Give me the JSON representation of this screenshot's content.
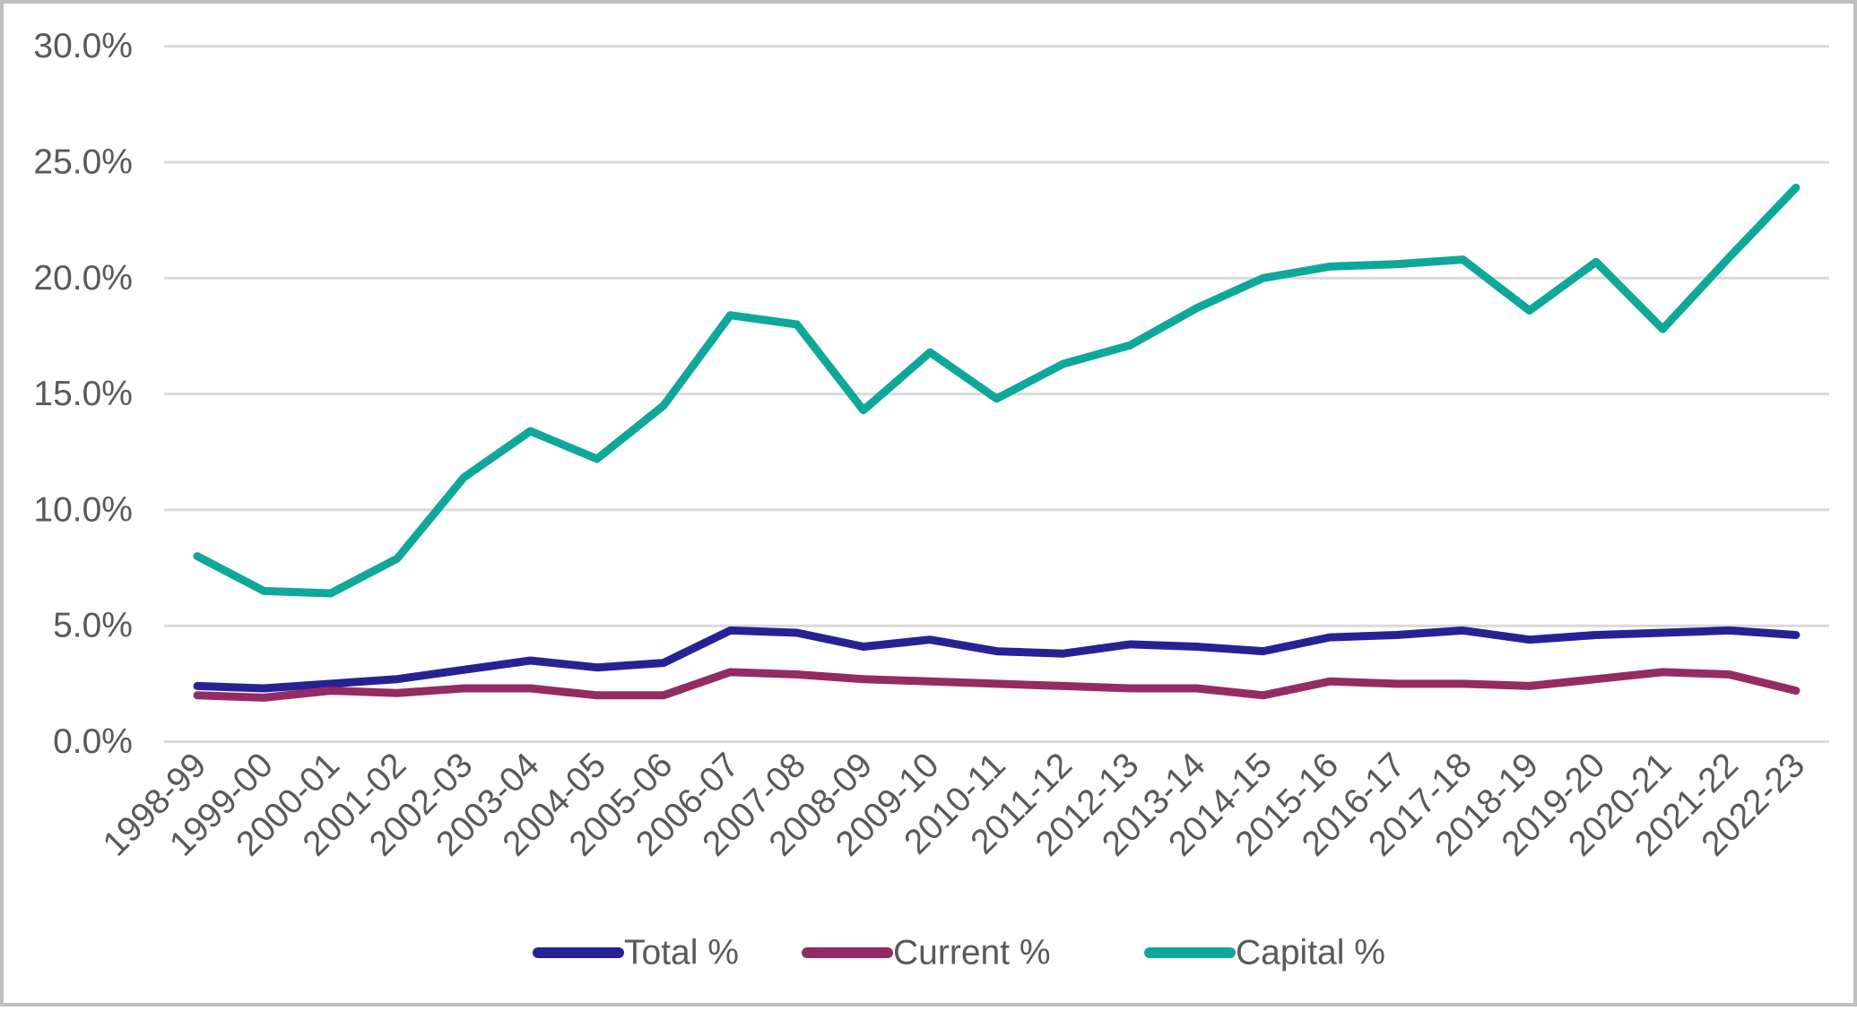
{
  "chart_data": {
    "type": "line",
    "title": "",
    "xlabel": "",
    "ylabel": "",
    "categories": [
      "1998-99",
      "1999-00",
      "2000-01",
      "2001-02",
      "2002-03",
      "2003-04",
      "2004-05",
      "2005-06",
      "2006-07",
      "2007-08",
      "2008-09",
      "2009-10",
      "2010-11",
      "2011-12",
      "2012-13",
      "2013-14",
      "2014-15",
      "2015-16",
      "2016-17",
      "2017-18",
      "2018-19",
      "2019-20",
      "2020-21",
      "2021-22",
      "2022-23"
    ],
    "series": [
      {
        "name": "Total %",
        "color": "#262295",
        "values": [
          2.4,
          2.3,
          2.5,
          2.7,
          3.1,
          3.5,
          3.2,
          3.4,
          4.8,
          4.7,
          4.1,
          4.4,
          3.9,
          3.8,
          4.2,
          4.1,
          3.9,
          4.5,
          4.6,
          4.8,
          4.4,
          4.6,
          4.7,
          4.8,
          4.6
        ]
      },
      {
        "name": "Current %",
        "color": "#942B64",
        "values": [
          2.0,
          1.9,
          2.2,
          2.1,
          2.3,
          2.3,
          2.0,
          2.0,
          3.0,
          2.9,
          2.7,
          2.6,
          2.5,
          2.4,
          2.3,
          2.3,
          2.0,
          2.6,
          2.5,
          2.5,
          2.4,
          2.7,
          3.0,
          2.9,
          2.2
        ]
      },
      {
        "name": "Capital %",
        "color": "#0EA89B",
        "values": [
          8.0,
          6.5,
          6.4,
          7.9,
          11.4,
          13.4,
          12.2,
          14.5,
          18.4,
          18.0,
          14.3,
          16.8,
          14.8,
          16.3,
          17.1,
          18.7,
          20.0,
          20.5,
          20.6,
          20.8,
          18.6,
          20.7,
          17.8,
          20.9,
          23.9
        ]
      }
    ],
    "y_ticks": [
      "0.0%",
      "5.0%",
      "10.0%",
      "15.0%",
      "20.0%",
      "25.0%",
      "30.0%"
    ],
    "ylim": [
      0,
      30
    ],
    "y_tick_step": 5,
    "grid": true,
    "legend_position": "bottom",
    "colors": {
      "axis_text": "#595959",
      "gridline": "#D9D9D9",
      "border": "#BFBFBF",
      "background": "#FFFFFF"
    }
  }
}
